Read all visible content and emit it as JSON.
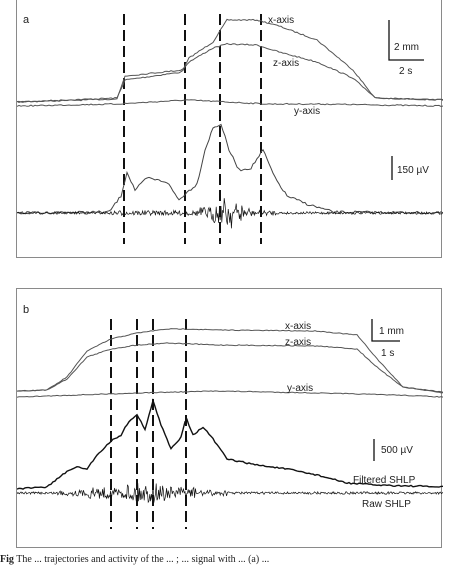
{
  "figure": {
    "panels": [
      {
        "id": "a",
        "label": "a",
        "traces": {
          "x_label": "x-axis",
          "z_label": "z-axis",
          "y_label": "y-axis"
        },
        "scale_bars": {
          "displacement": "2 mm",
          "time": "2 s",
          "voltage": "150 µV"
        }
      },
      {
        "id": "b",
        "label": "b",
        "traces": {
          "x_label": "x-axis",
          "z_label": "z-axis",
          "y_label": "y-axis"
        },
        "scale_bars": {
          "displacement": "1 mm",
          "time": "1 s",
          "voltage": "500 µV"
        },
        "signal_labels": {
          "filtered": "Filtered SHLP",
          "raw": "Raw SHLP"
        }
      }
    ],
    "caption": {
      "prefix": "Fig",
      "text": "The ... trajectories and activity of the ... ; ... signal with ... (a) ..."
    }
  }
}
